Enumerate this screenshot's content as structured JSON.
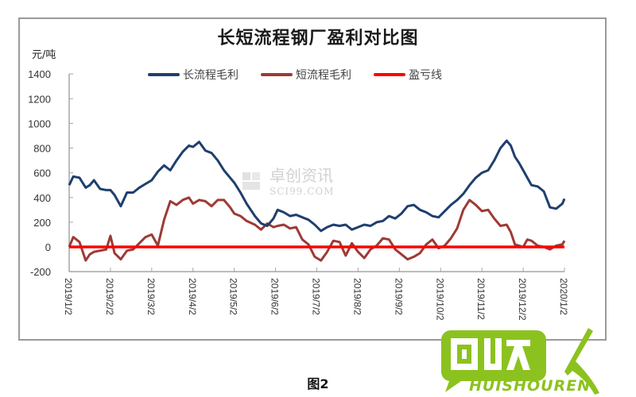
{
  "chart": {
    "title": "长短流程钢厂盈利对比图",
    "unit_label": "元/吨",
    "caption": "图2",
    "watermark": {
      "cn": "卓创资讯",
      "en": "SCI99.COM"
    },
    "logo": {
      "text": "HUISHOUREN",
      "glyph": "回收"
    },
    "colors": {
      "long": "#1f3f6e",
      "short": "#9e3a34",
      "breakeven": "#ff0000",
      "axis": "#a6a6a6",
      "logo_green": "#8cc21f"
    }
  },
  "legend": [
    {
      "label": "长流程毛利",
      "color": "#1f3f6e"
    },
    {
      "label": "短流程毛利",
      "color": "#9e3a34"
    },
    {
      "label": "盈亏线",
      "color": "#ff0000"
    }
  ],
  "chart_data": {
    "type": "line",
    "title": "长短流程钢厂盈利对比图",
    "xlabel": "",
    "ylabel": "元/吨",
    "ylim": [
      -200,
      1400
    ],
    "yticks": [
      1400,
      1200,
      1000,
      800,
      600,
      400,
      200,
      0,
      -200
    ],
    "categories": [
      "2019/1/2",
      "2019/2/2",
      "2019/3/2",
      "2019/4/2",
      "2019/5/2",
      "2019/6/2",
      "2019/7/2",
      "2019/8/2",
      "2019/9/2",
      "2019/10/2",
      "2019/11/2",
      "2019/12/2",
      "2020/1/2"
    ],
    "grid": false,
    "legend_position": "top",
    "x": [
      0,
      0.1,
      0.25,
      0.4,
      0.5,
      0.6,
      0.75,
      0.9,
      1.0,
      1.1,
      1.25,
      1.4,
      1.55,
      1.7,
      1.85,
      2.0,
      2.15,
      2.3,
      2.45,
      2.6,
      2.75,
      2.9,
      3.0,
      3.15,
      3.3,
      3.45,
      3.6,
      3.75,
      3.9,
      4.0,
      4.15,
      4.3,
      4.5,
      4.65,
      4.8,
      4.95,
      5.05,
      5.2,
      5.35,
      5.5,
      5.65,
      5.8,
      5.95,
      6.1,
      6.25,
      6.4,
      6.55,
      6.7,
      6.85,
      7.0,
      7.15,
      7.3,
      7.45,
      7.6,
      7.75,
      7.9,
      8.05,
      8.2,
      8.35,
      8.5,
      8.65,
      8.8,
      8.95,
      9.1,
      9.25,
      9.4,
      9.55,
      9.7,
      9.85,
      10.0,
      10.15,
      10.3,
      10.45,
      10.6,
      10.7,
      10.8,
      10.9,
      11.0,
      11.1,
      11.2,
      11.35,
      11.5,
      11.65,
      11.8,
      11.95,
      12.0
    ],
    "series": [
      {
        "name": "长流程毛利",
        "values": [
          500,
          570,
          560,
          480,
          500,
          540,
          470,
          460,
          460,
          420,
          330,
          440,
          440,
          480,
          510,
          540,
          610,
          660,
          620,
          700,
          770,
          820,
          810,
          850,
          780,
          760,
          700,
          620,
          560,
          520,
          440,
          350,
          250,
          190,
          170,
          230,
          300,
          280,
          250,
          260,
          240,
          220,
          180,
          130,
          160,
          180,
          170,
          180,
          140,
          160,
          180,
          170,
          200,
          210,
          250,
          230,
          270,
          330,
          340,
          300,
          280,
          250,
          240,
          290,
          340,
          380,
          430,
          500,
          560,
          600,
          620,
          700,
          800,
          860,
          820,
          730,
          680,
          620,
          560,
          500,
          490,
          450,
          320,
          310,
          350,
          390
        ]
      },
      {
        "name": "短流程毛利",
        "values": [
          0,
          80,
          40,
          -110,
          -60,
          -40,
          -30,
          -20,
          90,
          -50,
          -100,
          -30,
          -20,
          30,
          80,
          100,
          10,
          220,
          370,
          340,
          380,
          400,
          350,
          380,
          370,
          330,
          380,
          380,
          320,
          270,
          250,
          210,
          180,
          140,
          190,
          160,
          170,
          180,
          150,
          160,
          60,
          20,
          -80,
          -110,
          -40,
          50,
          40,
          -70,
          30,
          -40,
          -90,
          -20,
          10,
          70,
          60,
          -20,
          -60,
          -100,
          -80,
          -50,
          20,
          60,
          -10,
          10,
          70,
          150,
          300,
          380,
          340,
          290,
          300,
          230,
          170,
          180,
          120,
          20,
          10,
          0,
          60,
          50,
          10,
          0,
          -20,
          10,
          20,
          50
        ]
      },
      {
        "name": "盈亏线",
        "values": [
          0,
          0
        ]
      }
    ]
  }
}
